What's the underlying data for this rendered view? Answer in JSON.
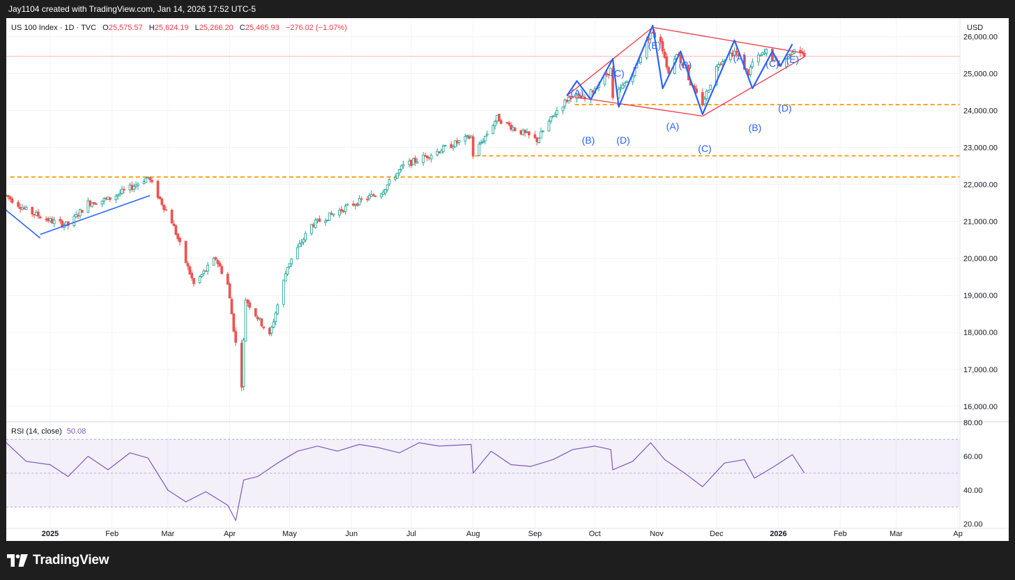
{
  "header": {
    "credit": "Jay1104 created with TradingView.com, Jan 14, 2026 17:52 UTC-5"
  },
  "legend": {
    "symbol": "US 100 Index · 1D · TVC",
    "o_label": "O",
    "o_value": "25,575.57",
    "h_label": "H",
    "h_value": "25,624.19",
    "l_label": "L",
    "l_value": "25,266.20",
    "c_label": "C",
    "c_value": "25,465.93",
    "change": "−276.02 (−1.07%)"
  },
  "currency": "USD",
  "rsi": {
    "label": "RSI (14, close)",
    "value": "50.08"
  },
  "brand": {
    "name": "TradingView"
  },
  "colors": {
    "up": "#26a69a",
    "down": "#ef5350",
    "wave": "#2962ff",
    "pattern": "#f23645",
    "level": "#ff9800",
    "rsi": "#7e57c2"
  },
  "chart_data": [
    {
      "type": "candlestick",
      "title": "US 100 Index · 1D · TVC",
      "ylim": [
        15600,
        26500
      ],
      "yticks": [
        "26,000.00",
        "25,000.00",
        "24,000.00",
        "23,000.00",
        "22,000.00",
        "21,000.00",
        "20,000.00",
        "19,000.00",
        "18,000.00",
        "17,000.00",
        "16,000.00"
      ],
      "xticks": [
        "2025",
        "Feb",
        "Mar",
        "Apr",
        "May",
        "Jun",
        "Jul",
        "Aug",
        "Sep",
        "Oct",
        "Nov",
        "Dec",
        "2026",
        "Feb",
        "Mar",
        "Ap"
      ],
      "x_range": [
        "2024-12-10",
        "2026-04-02"
      ],
      "last_price": "25,465.93",
      "horizontal_levels": [
        "24,158.67",
        "22,775.36",
        "22,202.28"
      ],
      "trend_path": [
        [
          "2024-12-10",
          21700
        ],
        [
          "2024-12-20",
          21300
        ],
        [
          "2025-01-02",
          21000
        ],
        [
          "2025-01-10",
          20900
        ],
        [
          "2025-01-20",
          21500
        ],
        [
          "2025-01-30",
          21600
        ],
        [
          "2025-02-10",
          21900
        ],
        [
          "2025-02-19",
          22200
        ],
        [
          "2025-03-03",
          21000
        ],
        [
          "2025-03-10",
          19900
        ],
        [
          "2025-03-14",
          19300
        ],
        [
          "2025-03-25",
          20000
        ],
        [
          "2025-03-31",
          19300
        ],
        [
          "2025-04-04",
          17700
        ],
        [
          "2025-04-07",
          16600
        ],
        [
          "2025-04-09",
          18900
        ],
        [
          "2025-04-21",
          17900
        ],
        [
          "2025-04-30",
          19800
        ],
        [
          "2025-05-12",
          20900
        ],
        [
          "2025-05-30",
          21400
        ],
        [
          "2025-06-16",
          21800
        ],
        [
          "2025-06-27",
          22500
        ],
        [
          "2025-07-10",
          22800
        ],
        [
          "2025-07-31",
          23300
        ],
        [
          "2025-08-01",
          22800
        ],
        [
          "2025-08-13",
          23800
        ],
        [
          "2025-08-22",
          23500
        ],
        [
          "2025-09-02",
          23200
        ],
        [
          "2025-09-12",
          24000
        ],
        [
          "2025-09-19",
          24400
        ],
        [
          "2025-09-26",
          24300
        ],
        [
          "2025-10-09",
          25100
        ],
        [
          "2025-10-10",
          24300
        ],
        [
          "2025-10-20",
          25000
        ],
        [
          "2025-10-29",
          26100
        ],
        [
          "2025-11-03",
          25900
        ],
        [
          "2025-11-07",
          25000
        ],
        [
          "2025-11-11",
          25600
        ],
        [
          "2025-11-20",
          24500
        ],
        [
          "2025-11-24",
          24200
        ],
        [
          "2025-12-02",
          25300
        ],
        [
          "2025-12-10",
          25600
        ],
        [
          "2025-12-17",
          25000
        ],
        [
          "2025-12-19",
          25300
        ],
        [
          "2025-12-26",
          25600
        ],
        [
          "2026-01-02",
          25200
        ],
        [
          "2026-01-09",
          25700
        ],
        [
          "2026-01-12",
          25600
        ],
        [
          "2026-01-14",
          25465.93
        ]
      ],
      "annotations": {
        "wave_labels": [
          "(A)",
          "(B)",
          "(C)",
          "(D)",
          "(E)",
          "(A)",
          "(B)",
          "(C)",
          "(A)",
          "(B)",
          "(C)",
          "(D)",
          "(E)"
        ],
        "blue_lines": [
          [
            [
              "2025-09-17",
              24400
            ],
            [
              "2025-09-22",
              24800
            ],
            [
              "2025-09-29",
              24300
            ],
            [
              "2025-10-10",
              25400
            ],
            [
              "2025-10-13",
              24100
            ],
            [
              "2025-10-30",
              26300
            ],
            [
              "2025-11-04",
              24600
            ],
            [
              "2025-11-13",
              25600
            ],
            [
              "2025-11-24",
              23900
            ],
            [
              "2025-12-10",
              25900
            ],
            [
              "2025-12-19",
              24600
            ],
            [
              "2025-12-29",
              25600
            ],
            [
              "2026-01-02",
              25200
            ],
            [
              "2026-01-08",
              25800
            ]
          ],
          [
            [
              "2024-12-10",
              21300
            ],
            [
              "2024-12-27",
              20550
            ]
          ],
          [
            [
              "2024-12-27",
              20650
            ],
            [
              "2025-02-20",
              21700
            ]
          ]
        ],
        "red_lines": [
          [
            [
              "2025-09-17",
              24400
            ],
            [
              "2025-10-30",
              26250
            ]
          ],
          [
            [
              "2025-10-30",
              26250
            ],
            [
              "2026-01-14",
              25550
            ]
          ],
          [
            [
              "2025-09-17",
              24400
            ],
            [
              "2025-11-24",
              23850
            ]
          ],
          [
            [
              "2025-11-24",
              23850
            ],
            [
              "2026-01-14",
              25450
            ]
          ]
        ]
      }
    },
    {
      "type": "line",
      "title": "RSI (14, close)",
      "ylim": [
        17.3,
        80
      ],
      "yticks": [
        "80.00",
        "60.00",
        "40.00",
        "20.00"
      ],
      "bands": [
        30,
        50,
        70
      ],
      "last_value": "50.08",
      "x": [
        "2024-12-10",
        "2024-12-20",
        "2025-01-01",
        "2025-01-10",
        "2025-01-20",
        "2025-01-30",
        "2025-02-10",
        "2025-02-19",
        "2025-03-01",
        "2025-03-10",
        "2025-03-20",
        "2025-03-31",
        "2025-04-04",
        "2025-04-08",
        "2025-04-15",
        "2025-04-25",
        "2025-05-05",
        "2025-05-15",
        "2025-05-25",
        "2025-06-05",
        "2025-06-15",
        "2025-06-25",
        "2025-07-05",
        "2025-07-15",
        "2025-07-31",
        "2025-08-01",
        "2025-08-10",
        "2025-08-20",
        "2025-08-30",
        "2025-09-10",
        "2025-09-20",
        "2025-10-01",
        "2025-10-09",
        "2025-10-10",
        "2025-10-20",
        "2025-10-29",
        "2025-11-05",
        "2025-11-15",
        "2025-11-24",
        "2025-12-05",
        "2025-12-15",
        "2025-12-20",
        "2025-12-30",
        "2026-01-08",
        "2026-01-14"
      ],
      "values": [
        68,
        57,
        55,
        48,
        60,
        52,
        62,
        59,
        40,
        33,
        39,
        31,
        22,
        46,
        48,
        56,
        63,
        66,
        63,
        67,
        65,
        62,
        68,
        66,
        67,
        50,
        63,
        55,
        54,
        58,
        64,
        66,
        64,
        52,
        57,
        68,
        58,
        50,
        42,
        56,
        58,
        47,
        54,
        61,
        50.08
      ]
    }
  ]
}
